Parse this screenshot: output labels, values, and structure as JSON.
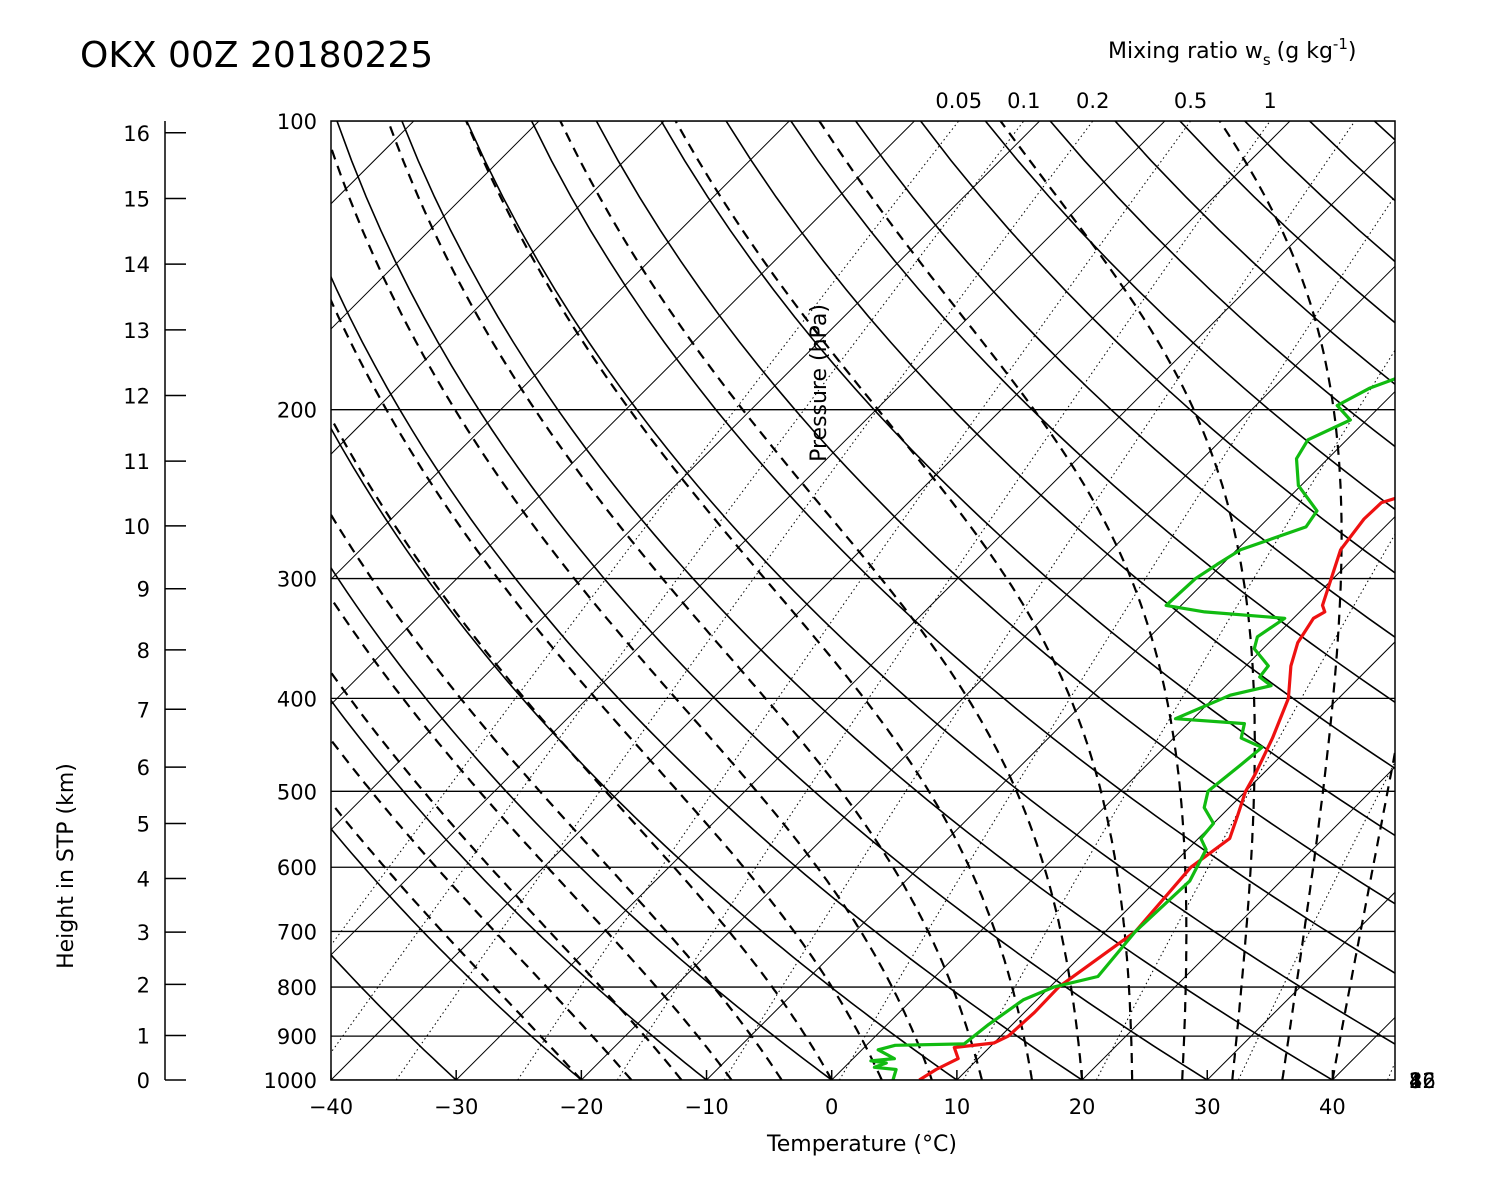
{
  "chart_data": {
    "type": "line",
    "title": "OKX 00Z 20180225",
    "xlabel": "Temperature (°C)",
    "ylabel_left": "Height in STP (km)",
    "ylabel_inner": "Pressure (hPa)",
    "top_label": "Mixing ratio w",
    "top_label_sub": "s",
    "top_label_units_pre": "(g kg",
    "top_label_units_sup": "-1",
    "top_label_units_post": ")",
    "xlim": [
      -40,
      45
    ],
    "plim": [
      1000,
      100
    ],
    "y_scale": "log-pressure",
    "skew": "temperature isotherms skewed 45°",
    "x_ticks": [
      "−40",
      "−30",
      "−20",
      "−10",
      "0",
      "10",
      "20",
      "30",
      "40"
    ],
    "x_tick_values": [
      -40,
      -30,
      -20,
      -10,
      0,
      10,
      20,
      30,
      40
    ],
    "pressure_ticks": [
      "100",
      "200",
      "300",
      "400",
      "500",
      "600",
      "700",
      "800",
      "900",
      "1000"
    ],
    "pressure_tick_values": [
      100,
      200,
      300,
      400,
      500,
      600,
      700,
      800,
      900,
      1000
    ],
    "height_ticks": [
      "0",
      "1",
      "2",
      "3",
      "4",
      "5",
      "6",
      "7",
      "8",
      "9",
      "10",
      "11",
      "12",
      "13",
      "14",
      "15",
      "16"
    ],
    "height_tick_values": [
      0,
      1,
      2,
      3,
      4,
      5,
      6,
      7,
      8,
      9,
      10,
      11,
      12,
      13,
      14,
      15,
      16
    ],
    "mixing_ratio_top_labels": [
      "0.05",
      "0.1",
      "0.2",
      "0.5",
      "1"
    ],
    "mixing_ratio_top_values": [
      0.05,
      0.1,
      0.2,
      0.5,
      1
    ],
    "mixing_ratio_right_labels": [
      "2",
      "4",
      "8",
      "16",
      "32"
    ],
    "mixing_ratio_right_values": [
      2,
      4,
      8,
      16,
      32
    ],
    "series": [
      {
        "name": "Temperature",
        "color": "#ee1111",
        "points": [
          [
            7.0,
            1000
          ],
          [
            7.5,
            975
          ],
          [
            8.4,
            950
          ],
          [
            7.2,
            925
          ],
          [
            10.0,
            915
          ],
          [
            10.6,
            900
          ],
          [
            10.8,
            850
          ],
          [
            10.7,
            800
          ],
          [
            12.4,
            700
          ],
          [
            11.7,
            600
          ],
          [
            12.5,
            560
          ],
          [
            11.3,
            530
          ],
          [
            10.0,
            500
          ],
          [
            9.4,
            480
          ],
          [
            7.9,
            440
          ],
          [
            6.0,
            400
          ],
          [
            3.6,
            370
          ],
          [
            2.3,
            350
          ],
          [
            1.6,
            330
          ],
          [
            2.0,
            325
          ],
          [
            1.3,
            320
          ],
          [
            -1.7,
            280
          ],
          [
            -2.3,
            260
          ],
          [
            -2.2,
            250
          ],
          [
            -0.7,
            245
          ],
          [
            -2.2,
            225
          ],
          [
            0.0,
            215
          ],
          [
            3.6,
            205
          ],
          [
            4.3,
            205
          ],
          [
            6.0,
            195
          ],
          [
            7.4,
            192
          ],
          [
            8.6,
            187
          ],
          [
            13.1,
            180
          ],
          [
            12.2,
            170
          ],
          [
            11.4,
            165
          ],
          [
            14.4,
            160
          ],
          [
            14.1,
            150
          ],
          [
            15.0,
            140
          ],
          [
            15.1,
            130
          ],
          [
            15.1,
            125
          ],
          [
            17.0,
            115
          ],
          [
            17.4,
            110
          ],
          [
            17.6,
            105
          ],
          [
            18.7,
            100
          ]
        ]
      },
      {
        "name": "Dewpoint",
        "color": "#11bb11",
        "points": [
          [
            4.9,
            1000
          ],
          [
            4.3,
            975
          ],
          [
            2.4,
            970
          ],
          [
            3.0,
            960
          ],
          [
            1.6,
            955
          ],
          [
            3.3,
            950
          ],
          [
            1.3,
            930
          ],
          [
            2.3,
            920
          ],
          [
            7.7,
            917
          ],
          [
            8.1,
            875
          ],
          [
            8.9,
            825
          ],
          [
            10.3,
            800
          ],
          [
            13.0,
            780
          ],
          [
            12.4,
            700
          ],
          [
            12.7,
            620
          ],
          [
            11.5,
            575
          ],
          [
            10.2,
            560
          ],
          [
            10.0,
            540
          ],
          [
            8.0,
            520
          ],
          [
            7.0,
            500
          ],
          [
            7.5,
            470
          ],
          [
            7.8,
            450
          ],
          [
            5.4,
            440
          ],
          [
            4.5,
            425
          ],
          [
            -1.4,
            420
          ],
          [
            1.1,
            397
          ],
          [
            3.6,
            388
          ],
          [
            2.0,
            380
          ],
          [
            1.8,
            370
          ],
          [
            -0.7,
            355
          ],
          [
            -1.4,
            345
          ],
          [
            -0.7,
            330
          ],
          [
            -7.6,
            325
          ],
          [
            -11.2,
            320
          ],
          [
            -11.0,
            300
          ],
          [
            -10.4,
            290
          ],
          [
            -9.7,
            280
          ],
          [
            -6.3,
            265
          ],
          [
            -6.7,
            255
          ],
          [
            -10.2,
            240
          ],
          [
            -12.5,
            225
          ],
          [
            -13.1,
            215
          ],
          [
            -11.3,
            205
          ],
          [
            -13.5,
            198
          ],
          [
            -12.3,
            190
          ],
          [
            -10.8,
            185
          ],
          [
            -9.8,
            175
          ],
          [
            -8.3,
            165
          ],
          [
            -8.4,
            160
          ],
          [
            -6.9,
            150
          ],
          [
            -5.8,
            140
          ],
          [
            -5.8,
            130
          ],
          [
            -3.5,
            120
          ],
          [
            -1.5,
            115
          ],
          [
            -2.2,
            110
          ],
          [
            -0.8,
            105
          ],
          [
            0.6,
            100
          ]
        ]
      }
    ],
    "grid": true
  }
}
